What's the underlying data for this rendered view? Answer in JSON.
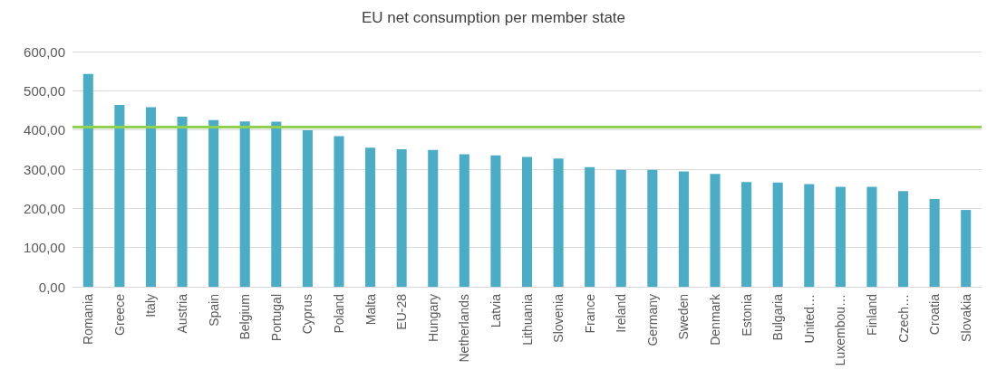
{
  "chart_data": {
    "type": "bar",
    "title": "EU net consumption per member state",
    "categories": [
      "Romania",
      "Greece",
      "Italy",
      "Austria",
      "Spain",
      "Belgium",
      "Portugal",
      "Cyprus",
      "Poland",
      "Malta",
      "EU-28",
      "Hungary",
      "Netherlands",
      "Latvia",
      "Lithuania",
      "Slovenia",
      "France",
      "Ireland",
      "Germany",
      "Sweden",
      "Denmark",
      "Estonia",
      "Bulgaria",
      "United…",
      "Luxembou…",
      "Finland",
      "Czech…",
      "Croatia",
      "Slovakia"
    ],
    "values": [
      543,
      464,
      458,
      434,
      425,
      422,
      421,
      399,
      384,
      355,
      351,
      349,
      338,
      335,
      331,
      327,
      305,
      298,
      298,
      294,
      288,
      267,
      266,
      262,
      255,
      255,
      244,
      224,
      196
    ],
    "color": "#4bacc6",
    "ylim": [
      0,
      600
    ],
    "yticks": [
      {
        "value": 0,
        "label": "0,00"
      },
      {
        "value": 100,
        "label": "100,00"
      },
      {
        "value": 200,
        "label": "200,00"
      },
      {
        "value": 300,
        "label": "300,00"
      },
      {
        "value": 400,
        "label": "400,00"
      },
      {
        "value": 500,
        "label": "500,00"
      },
      {
        "value": 600,
        "label": "600,00"
      }
    ],
    "grid": "y",
    "ref_lines": [
      {
        "axis": "y",
        "value": 407,
        "color": "#92d050",
        "line_style": "solid"
      }
    ]
  }
}
